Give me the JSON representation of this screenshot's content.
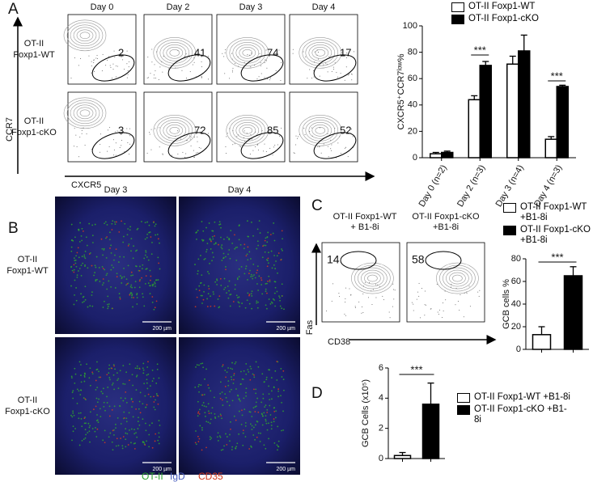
{
  "panel_labels": [
    "A",
    "B",
    "C",
    "D"
  ],
  "flow_a": {
    "columns": [
      "Day 0",
      "Day 2",
      "Day 3",
      "Day 4"
    ],
    "rows": [
      [
        "OT-II",
        "Foxp1-WT"
      ],
      [
        "OT-II",
        "Foxp1-cKO"
      ]
    ],
    "gates": [
      [
        2,
        41,
        74,
        17
      ],
      [
        3,
        72,
        85,
        52
      ]
    ],
    "y_label": "CCR7",
    "x_label": "CXCR5"
  },
  "images_b": {
    "columns": [
      "Day 3",
      "Day 4"
    ],
    "rows": [
      [
        "OT-II",
        "Foxp1-WT"
      ],
      [
        "OT-II",
        "Foxp1-cKO"
      ]
    ],
    "scale_bar": "200 µm",
    "stains": [
      {
        "name": "OT-II",
        "color": "#2fa52f"
      },
      {
        "name": "IgD",
        "color": "#4a5fc0"
      },
      {
        "name": "CD35",
        "color": "#d23a1e"
      }
    ]
  },
  "flow_c": {
    "columns": [
      [
        "OT-II Foxp1-WT",
        "+ B1-8i"
      ],
      [
        "OT-II Foxp1-cKO",
        "+B1-8i"
      ]
    ],
    "gates": [
      14,
      58
    ],
    "y_label": "Fas",
    "x_label": "CD38"
  },
  "chart_data": [
    {
      "type": "bar",
      "y_label": "CXCR5⁺CCR7ˡᵒʷ%",
      "categories": [
        "Day 0 (n=2)",
        "Day 2 (n=3)",
        "Day 3 (n=4)",
        "Day 4 (n=3)"
      ],
      "series": [
        {
          "name": "OT-II Foxp1-WT",
          "color": "#ffffff",
          "values": [
            3,
            44,
            71,
            14
          ],
          "errors": [
            1,
            3,
            6,
            2
          ]
        },
        {
          "name": "OT-II Foxp1-cKO",
          "color": "#000000",
          "values": [
            4,
            70,
            81,
            54
          ],
          "errors": [
            1,
            3,
            12,
            1
          ]
        }
      ],
      "ylim": [
        0,
        100
      ],
      "yticks": [
        0,
        20,
        40,
        60,
        80,
        100
      ],
      "annotations": [
        "***",
        "***"
      ]
    },
    {
      "type": "bar",
      "y_label": "GCB cells %",
      "categories": [
        null,
        null
      ],
      "series": [
        {
          "name": "OT-II Foxp1-WT +B1-8i",
          "color": "#ffffff",
          "values": [
            13,
            null
          ],
          "errors": [
            7,
            null
          ]
        },
        {
          "name": "OT-II Foxp1-cKO +B1-8i",
          "color": "#000000",
          "values": [
            null,
            65
          ],
          "errors": [
            null,
            8
          ]
        }
      ],
      "ylim": [
        0,
        80
      ],
      "yticks": [
        0,
        20,
        40,
        60,
        80
      ],
      "annotations": [
        "***"
      ]
    },
    {
      "type": "bar",
      "y_label": "GCB Cells (x10⁵)",
      "categories": [
        null,
        null
      ],
      "series": [
        {
          "name": "OT-II Foxp1-WT +B1-8i",
          "color": "#ffffff",
          "values": [
            0.2,
            null
          ],
          "errors": [
            0.2,
            null
          ]
        },
        {
          "name": "OT-II Foxp1-cKO +B1-8i",
          "color": "#000000",
          "values": [
            null,
            3.6
          ],
          "errors": [
            null,
            1.4
          ]
        }
      ],
      "ylim": [
        0,
        6
      ],
      "yticks": [
        0,
        2,
        4,
        6
      ],
      "annotations": [
        "***"
      ]
    }
  ]
}
